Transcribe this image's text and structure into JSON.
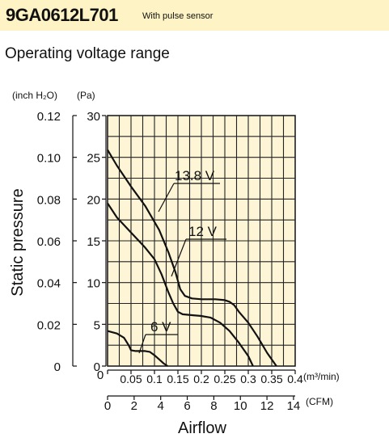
{
  "header": {
    "model": "9GA0612L701",
    "note": "With pulse sensor"
  },
  "subtitle": "Operating voltage range",
  "chart_data": {
    "type": "line",
    "xlabel": "Airflow",
    "ylabel": "Static pressure",
    "x_unit_primary": "(m³/min)",
    "x_unit_secondary": "(CFM)",
    "y_unit_primary": "(Pa)",
    "y_unit_secondary": "(inch H₂O)",
    "xlim": [
      0,
      0.4
    ],
    "ylim": [
      0,
      30
    ],
    "x_ticks_primary": [
      "0",
      "0.05",
      "0.1",
      "0.15",
      "0.2",
      "0.25",
      "0.3",
      "0.35",
      "0.4"
    ],
    "x_ticks_secondary": [
      "0",
      "2",
      "4",
      "6",
      "8",
      "10",
      "12",
      "14"
    ],
    "x_secondary_values": [
      0,
      2,
      4,
      6,
      8,
      10,
      12,
      14
    ],
    "y_ticks_primary": [
      "0",
      "5",
      "10",
      "15",
      "20",
      "25",
      "30"
    ],
    "y_ticks_secondary": [
      "0",
      "0.02",
      "0.04",
      "0.06",
      "0.08",
      "0.10",
      "0.12"
    ],
    "grid": true,
    "series": [
      {
        "name": "13.8 V",
        "x": [
          0,
          0.02,
          0.05,
          0.08,
          0.11,
          0.13,
          0.145,
          0.155,
          0.165,
          0.18,
          0.2,
          0.23,
          0.25,
          0.26,
          0.27,
          0.28,
          0.3,
          0.32,
          0.34,
          0.36
        ],
        "y": [
          25.9,
          24.0,
          21.5,
          19.2,
          16.3,
          13.6,
          11.2,
          9.2,
          8.4,
          8.1,
          8.0,
          8.0,
          7.9,
          7.7,
          7.3,
          6.5,
          5.2,
          3.5,
          1.6,
          0
        ]
      },
      {
        "name": "12 V",
        "x": [
          0,
          0.02,
          0.05,
          0.08,
          0.1,
          0.115,
          0.13,
          0.14,
          0.15,
          0.16,
          0.18,
          0.2,
          0.22,
          0.24,
          0.26,
          0.28,
          0.3,
          0.31
        ],
        "y": [
          19.5,
          17.8,
          16.0,
          14.2,
          12.8,
          11.0,
          8.8,
          7.5,
          6.5,
          6.2,
          6.1,
          6.0,
          5.8,
          5.2,
          4.2,
          2.8,
          1.2,
          0
        ]
      },
      {
        "name": "6 V",
        "x": [
          0,
          0.02,
          0.035,
          0.045,
          0.05,
          0.06,
          0.08,
          0.09,
          0.1,
          0.11,
          0.12,
          0.128
        ],
        "y": [
          4.2,
          3.9,
          3.4,
          2.5,
          1.9,
          1.8,
          1.8,
          1.7,
          1.3,
          0.8,
          0.3,
          0
        ]
      }
    ],
    "series_labels": [
      "13.8 V",
      "12 V",
      "6 V"
    ]
  }
}
